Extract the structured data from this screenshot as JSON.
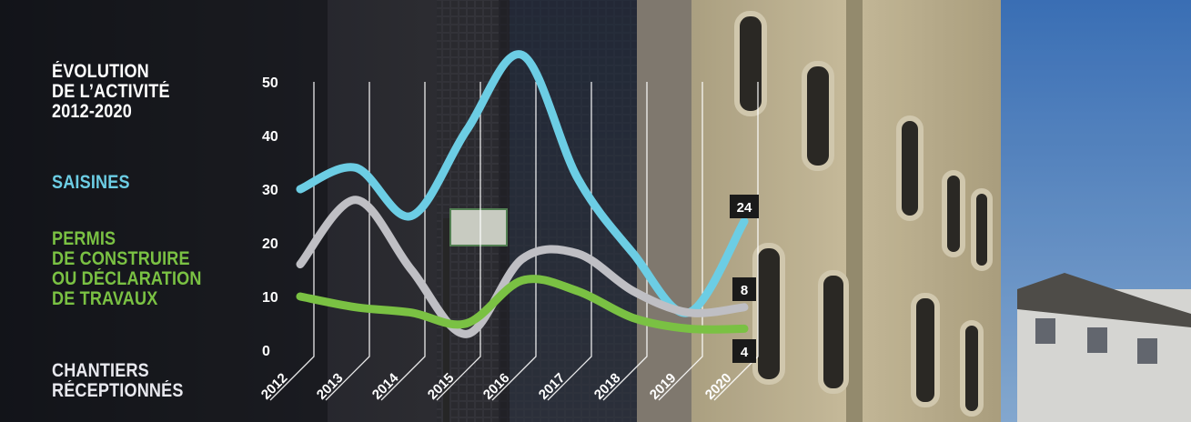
{
  "legend": {
    "title_lines": [
      "ÉVOLUTION",
      "DE L’ACTIVITÉ",
      "2012-2020"
    ],
    "saisines": "SAISINES",
    "permis_lines": [
      "PERMIS",
      "DE CONSTRUIRE",
      "OU DÉCLARATION",
      "DE TRAVAUX"
    ],
    "chantiers_lines": [
      "CHANTIERS",
      "RÉCEPTIONNÉS"
    ]
  },
  "colors": {
    "saisines": "#6ccde4",
    "permis": "#7ac143",
    "chantiers": "#bfbfc4",
    "label_box": "#1a1a1a",
    "sky": "#4f86c9",
    "dark_facade": "#26262c",
    "stone_facade": "#c9bc98"
  },
  "chart_data": {
    "type": "line",
    "title": "ÉVOLUTION DE L’ACTIVITÉ 2012-2020",
    "x": [
      "2012",
      "2013",
      "2014",
      "2015",
      "2016",
      "2017",
      "2018",
      "2019",
      "2020"
    ],
    "yticks": [
      "0",
      "10",
      "20",
      "30",
      "40",
      "50"
    ],
    "ylim": [
      0,
      55
    ],
    "grid": "vertical guide lines at each year",
    "smooth": true,
    "series": [
      {
        "key": "saisines",
        "name": "SAISINES",
        "values": [
          30,
          34,
          25,
          41,
          55,
          32,
          18,
          7,
          24
        ],
        "end_label": "24"
      },
      {
        "key": "chantiers",
        "name": "CHANTIERS RÉCEPTIONNÉS",
        "values": [
          16,
          28,
          15,
          3,
          17,
          18,
          11,
          7,
          8
        ],
        "end_label": "8"
      },
      {
        "key": "permis",
        "name": "PERMIS DE CONSTRUIRE OU DÉCLARATION DE TRAVAUX",
        "values": [
          10,
          8,
          7,
          5,
          13,
          11,
          6,
          4,
          4
        ],
        "end_label": "4"
      }
    ]
  }
}
